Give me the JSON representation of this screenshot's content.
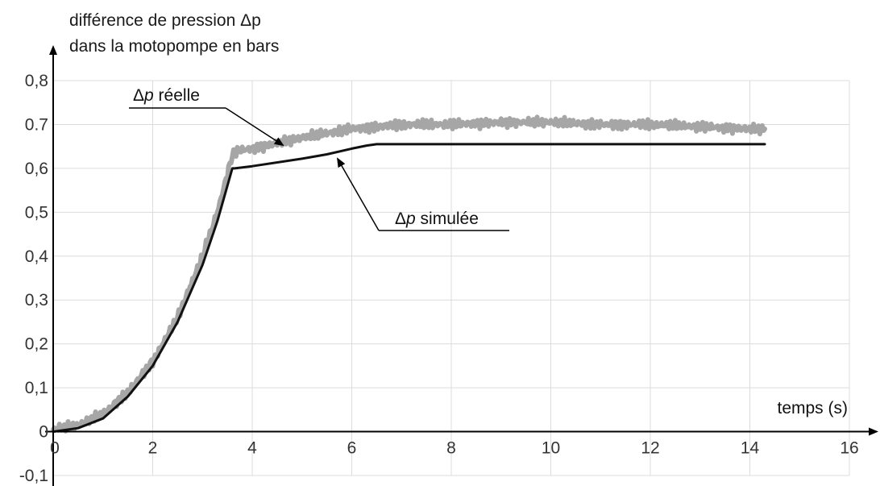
{
  "chart_data": {
    "type": "line",
    "title": "",
    "ylabel_line1": "différence de pression Δp",
    "ylabel_line2": "dans la motopompe en bars",
    "xlabel": "temps (s)",
    "xlim": [
      0,
      16
    ],
    "ylim": [
      -0.1,
      0.8
    ],
    "xticks": [
      "0",
      "2",
      "4",
      "6",
      "8",
      "10",
      "12",
      "14",
      "16"
    ],
    "yticks": [
      "0,8",
      "0.7",
      "0,6",
      "0,5",
      "0,4",
      "0,3",
      "0,2",
      "0,1",
      "0",
      "-0,1"
    ],
    "grid": true,
    "series": [
      {
        "name": "Δp réelle",
        "color": "#a6a6a6",
        "x": [
          0,
          0.5,
          1,
          1.5,
          2,
          2.5,
          3,
          3.3,
          3.6,
          3.7,
          4,
          5,
          6,
          7,
          8,
          9,
          10,
          11,
          12,
          13,
          14,
          14.3
        ],
        "y": [
          0.005,
          0.015,
          0.04,
          0.09,
          0.16,
          0.26,
          0.4,
          0.5,
          0.63,
          0.64,
          0.645,
          0.67,
          0.69,
          0.7,
          0.7,
          0.705,
          0.705,
          0.7,
          0.7,
          0.695,
          0.69,
          0.69
        ]
      },
      {
        "name": "Δp simulée",
        "color": "#111111",
        "x": [
          0,
          0.5,
          1,
          1.5,
          2,
          2.5,
          3,
          3.3,
          3.6,
          3.65,
          4,
          5,
          5.5,
          6,
          6.3,
          6.5,
          8,
          10,
          12,
          14,
          14.3
        ],
        "y": [
          0,
          0.008,
          0.03,
          0.08,
          0.15,
          0.25,
          0.38,
          0.48,
          0.6,
          0.6,
          0.605,
          0.622,
          0.632,
          0.645,
          0.652,
          0.655,
          0.655,
          0.655,
          0.655,
          0.655,
          0.655
        ]
      }
    ],
    "annotations": [
      {
        "series": 0,
        "label_pre": "Δ",
        "label_p": "p",
        "label_post": " réelle"
      },
      {
        "series": 1,
        "label_pre": "Δ",
        "label_p": "p",
        "label_post": " simulée"
      }
    ]
  }
}
